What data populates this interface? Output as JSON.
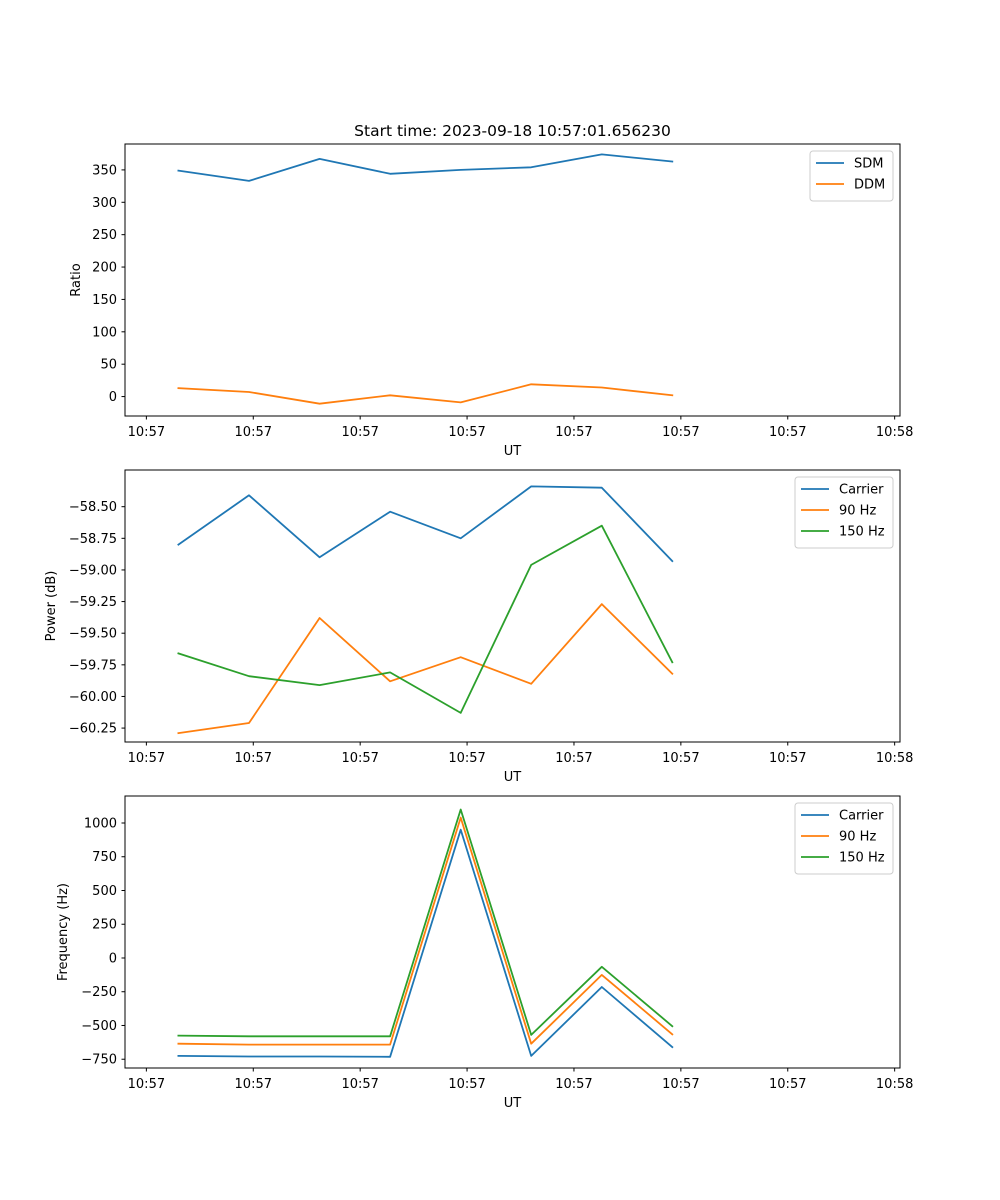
{
  "chart_data": [
    {
      "type": "line",
      "title": "Start time: 2023-09-18 10:57:01.656230",
      "xlabel": "UT",
      "ylabel": "Ratio",
      "x_tick_labels": [
        "10:57",
        "10:57",
        "10:57",
        "10:57",
        "10:57",
        "10:57",
        "10:57",
        "10:58"
      ],
      "xlim": [
        0,
        7.25
      ],
      "x": [
        0.5,
        1.16,
        1.82,
        2.48,
        3.14,
        3.8,
        4.46,
        5.12
      ],
      "ylim": [
        -30,
        390
      ],
      "y_ticks": [
        0,
        50,
        100,
        150,
        200,
        250,
        300,
        350
      ],
      "y_tick_labels": [
        "0",
        "50",
        "100",
        "150",
        "200",
        "250",
        "300",
        "350"
      ],
      "legend_position": "top-right",
      "series": [
        {
          "name": "SDM",
          "color": "#1f77b4",
          "values": [
            349,
            333,
            367,
            344,
            350,
            354,
            374,
            363
          ]
        },
        {
          "name": "DDM",
          "color": "#ff7f0e",
          "values": [
            13,
            7,
            -11,
            2,
            -9,
            19,
            14,
            2
          ]
        }
      ]
    },
    {
      "type": "line",
      "title": "",
      "xlabel": "UT",
      "ylabel": "Power (dB)",
      "x_tick_labels": [
        "10:57",
        "10:57",
        "10:57",
        "10:57",
        "10:57",
        "10:57",
        "10:57",
        "10:58"
      ],
      "xlim": [
        0,
        7.25
      ],
      "x": [
        0.5,
        1.16,
        1.82,
        2.48,
        3.14,
        3.8,
        4.46,
        5.12
      ],
      "ylim": [
        -60.36,
        -58.21
      ],
      "y_ticks": [
        -60.25,
        -60.0,
        -59.75,
        -59.5,
        -59.25,
        -59.0,
        -58.75,
        -58.5
      ],
      "y_tick_labels": [
        "−60.25",
        "−60.00",
        "−59.75",
        "−59.50",
        "−59.25",
        "−59.00",
        "−58.75",
        "−58.50"
      ],
      "legend_position": "top-right",
      "series": [
        {
          "name": "Carrier",
          "color": "#1f77b4",
          "values": [
            -58.8,
            -58.41,
            -58.9,
            -58.54,
            -58.75,
            -58.34,
            -58.35,
            -58.93
          ]
        },
        {
          "name": "90 Hz",
          "color": "#ff7f0e",
          "values": [
            -60.29,
            -60.21,
            -59.38,
            -59.88,
            -59.69,
            -59.9,
            -59.27,
            -59.82
          ]
        },
        {
          "name": "150 Hz",
          "color": "#2ca02c",
          "values": [
            -59.66,
            -59.84,
            -59.91,
            -59.81,
            -60.13,
            -58.96,
            -58.65,
            -59.73
          ]
        }
      ]
    },
    {
      "type": "line",
      "title": "",
      "xlabel": "UT",
      "ylabel": "Frequency (Hz)",
      "x_tick_labels": [
        "10:57",
        "10:57",
        "10:57",
        "10:57",
        "10:57",
        "10:57",
        "10:57",
        "10:58"
      ],
      "xlim": [
        0,
        7.25
      ],
      "x": [
        0.5,
        1.16,
        1.82,
        2.48,
        3.14,
        3.8,
        4.46,
        5.12
      ],
      "ylim": [
        -815,
        1200
      ],
      "y_ticks": [
        -750,
        -500,
        -250,
        0,
        250,
        500,
        750,
        1000
      ],
      "y_tick_labels": [
        "−750",
        "−500",
        "−250",
        "0",
        "250",
        "500",
        "750",
        "1000"
      ],
      "legend_position": "top-right",
      "series": [
        {
          "name": "Carrier",
          "color": "#1f77b4",
          "values": [
            -725,
            -730,
            -730,
            -732,
            950,
            -725,
            -215,
            -660
          ]
        },
        {
          "name": "90 Hz",
          "color": "#ff7f0e",
          "values": [
            -635,
            -642,
            -642,
            -642,
            1040,
            -635,
            -125,
            -565
          ]
        },
        {
          "name": "150 Hz",
          "color": "#2ca02c",
          "values": [
            -575,
            -580,
            -580,
            -580,
            1100,
            -570,
            -65,
            -505
          ]
        }
      ]
    }
  ]
}
